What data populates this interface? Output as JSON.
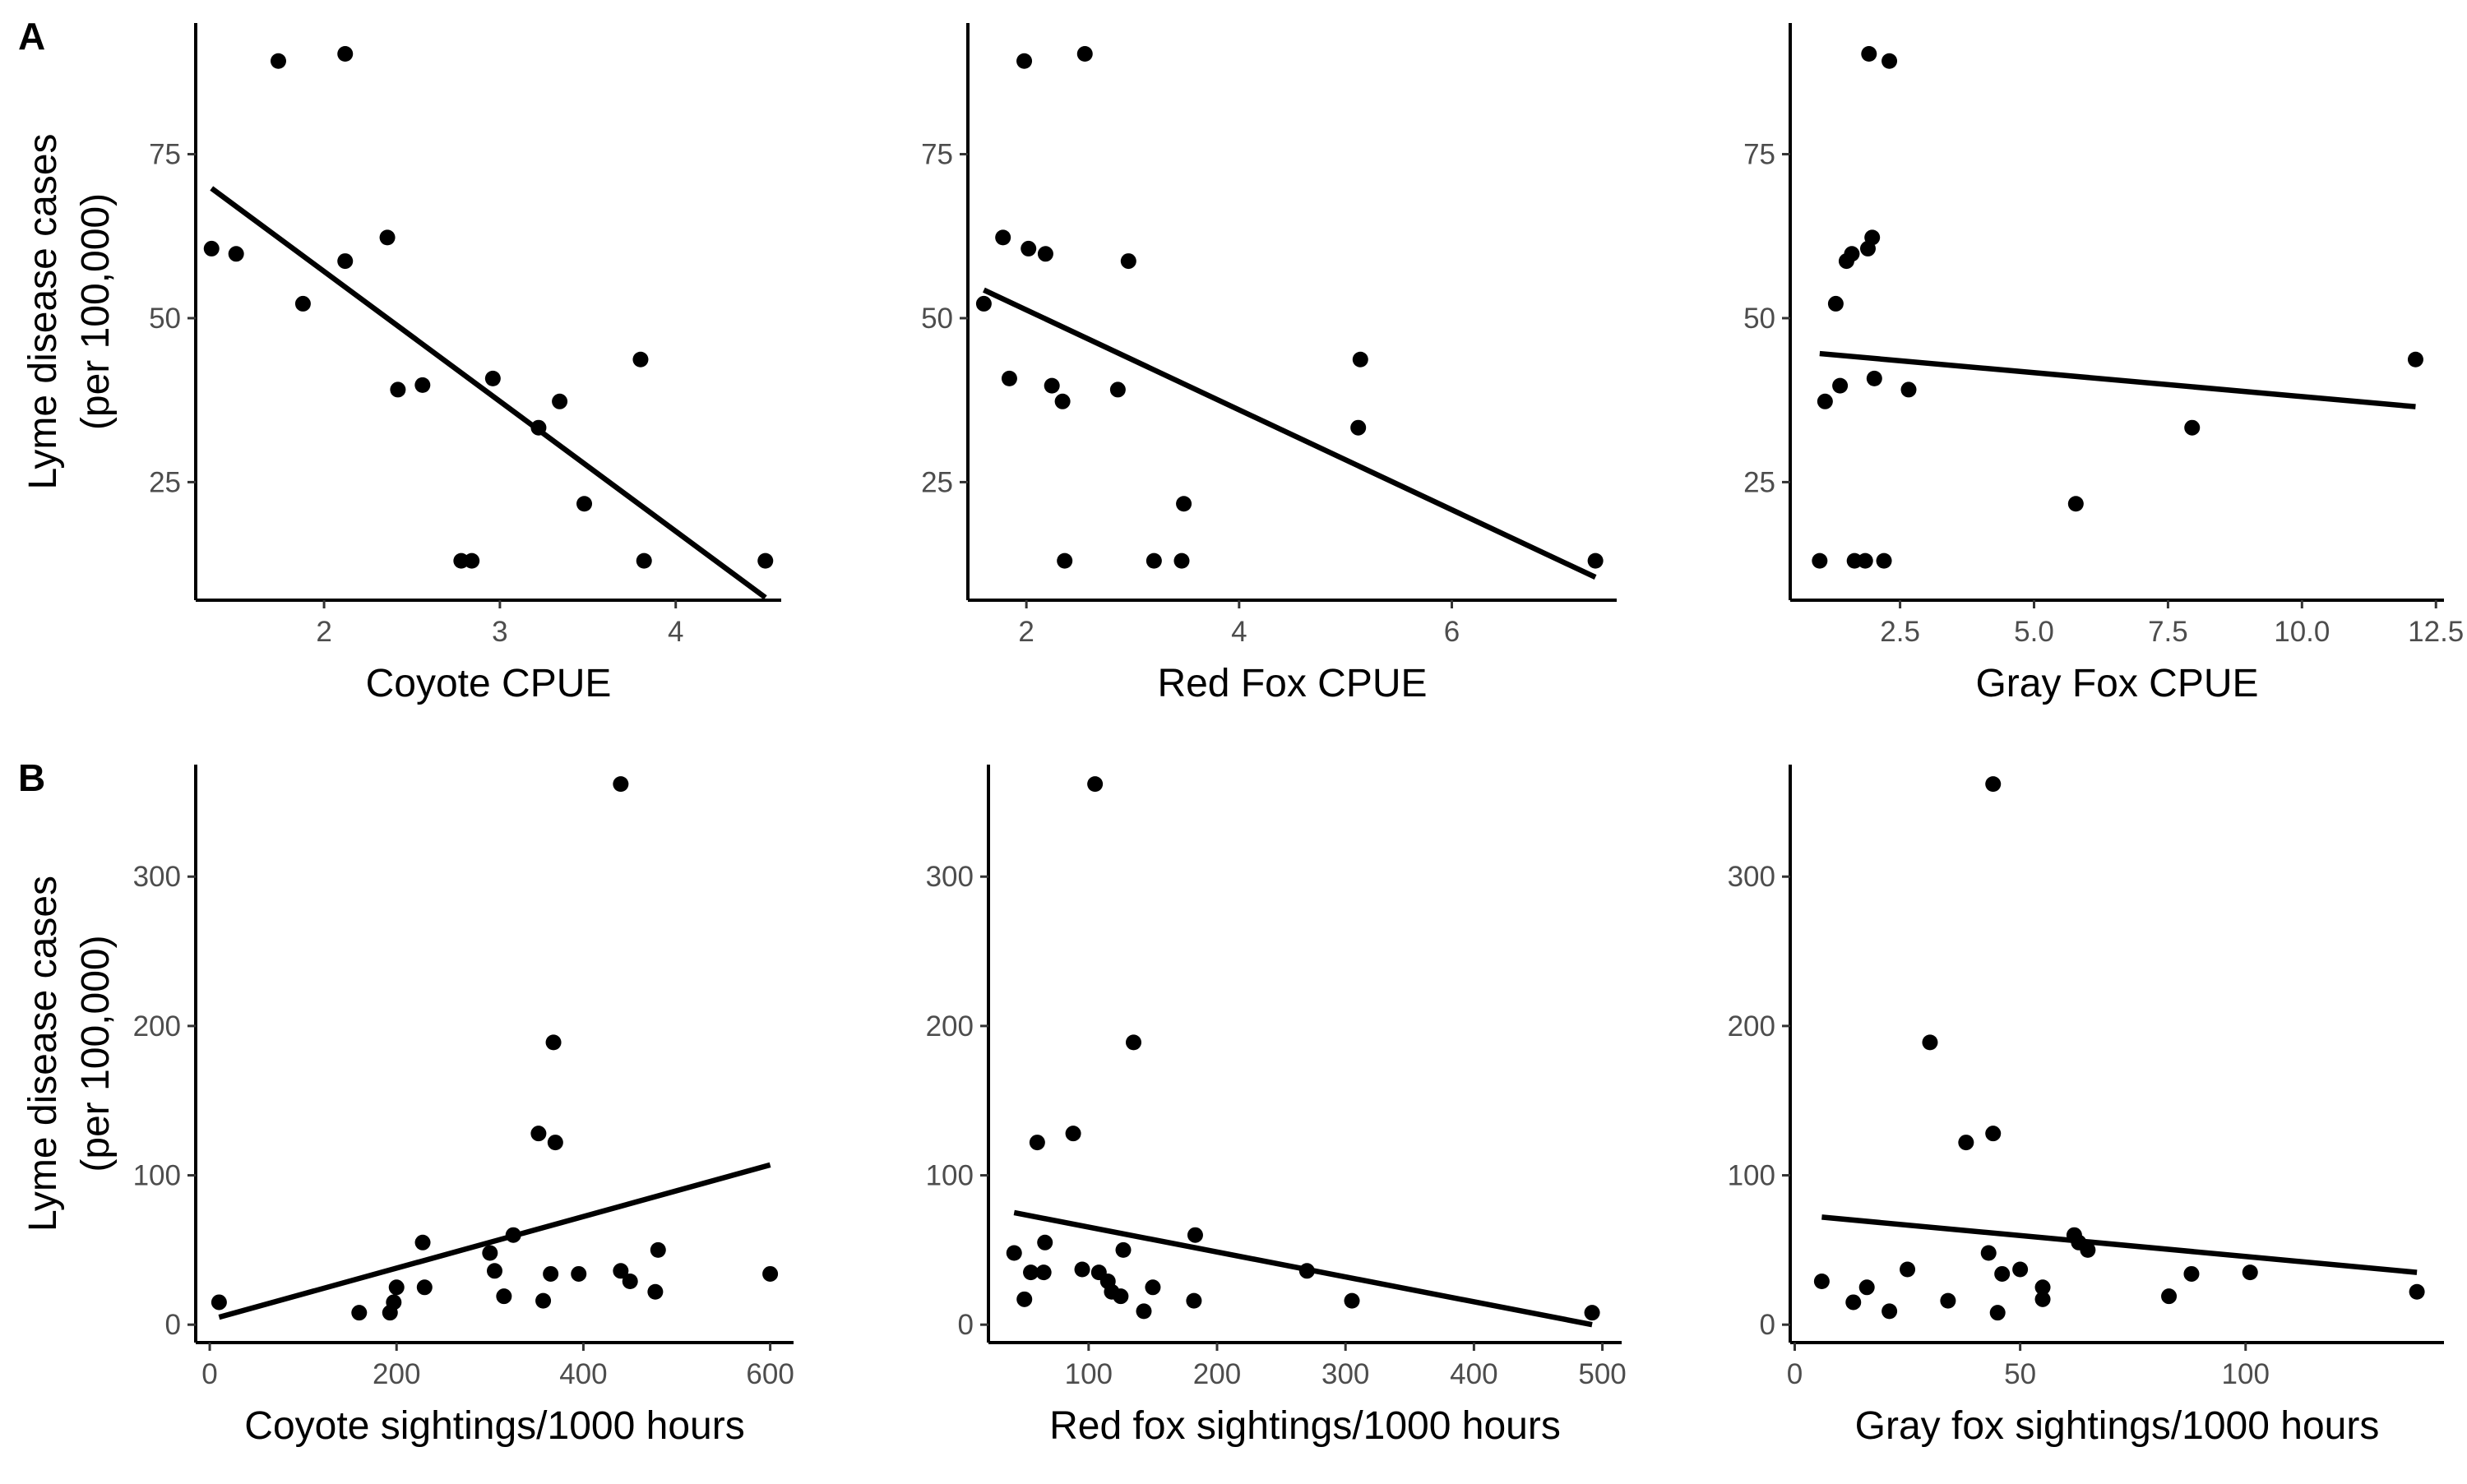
{
  "figure": {
    "row_labels": [
      "A",
      "B"
    ],
    "y_title_lines": [
      "Lyme disease cases",
      "(per 100,000)"
    ]
  },
  "chart_data": [
    {
      "type": "scatter",
      "title": "",
      "panel_label": "A",
      "xlabel": "Coyote CPUE",
      "ylabel": "Lyme disease cases (per 100,000)",
      "xlim": [
        1.27,
        4.6
      ],
      "ylim": [
        7,
        95
      ],
      "xticks": [
        2,
        3,
        4
      ],
      "xtick_labels": [
        "2",
        "3",
        "4"
      ],
      "yticks": [
        25,
        50,
        75
      ],
      "ytick_labels": [
        "25",
        "50",
        "75"
      ],
      "grid": false,
      "points": [
        [
          1.36,
          60.6
        ],
        [
          1.5,
          59.8
        ],
        [
          1.74,
          89.2
        ],
        [
          1.88,
          52.2
        ],
        [
          2.12,
          90.3
        ],
        [
          2.12,
          58.7
        ],
        [
          2.36,
          62.3
        ],
        [
          2.42,
          39.1
        ],
        [
          2.56,
          39.8
        ],
        [
          2.78,
          13
        ],
        [
          2.84,
          13
        ],
        [
          2.96,
          40.8
        ],
        [
          3.22,
          33.3
        ],
        [
          3.34,
          37.3
        ],
        [
          3.48,
          21.7
        ],
        [
          3.8,
          43.7
        ],
        [
          3.82,
          13
        ],
        [
          4.51,
          13
        ]
      ],
      "fit_line": [
        [
          1.36,
          69.8
        ],
        [
          4.51,
          7.4
        ]
      ]
    },
    {
      "type": "scatter",
      "title": "",
      "xlabel": "Red Fox CPUE",
      "ylabel": "",
      "xlim": [
        1.45,
        7.55
      ],
      "ylim": [
        7,
        95
      ],
      "xticks": [
        2,
        4,
        6
      ],
      "xtick_labels": [
        "2",
        "4",
        "6"
      ],
      "yticks": [
        25,
        50,
        75
      ],
      "ytick_labels": [
        "25",
        "50",
        "75"
      ],
      "grid": false,
      "points": [
        [
          1.6,
          52.2
        ],
        [
          1.78,
          62.3
        ],
        [
          1.84,
          40.8
        ],
        [
          1.98,
          89.2
        ],
        [
          2.02,
          60.6
        ],
        [
          2.18,
          59.8
        ],
        [
          2.24,
          39.7
        ],
        [
          2.34,
          37.3
        ],
        [
          2.36,
          13
        ],
        [
          2.55,
          90.3
        ],
        [
          2.86,
          39.1
        ],
        [
          2.96,
          58.7
        ],
        [
          3.2,
          13
        ],
        [
          3.46,
          13
        ],
        [
          3.48,
          21.7
        ],
        [
          5.12,
          33.3
        ],
        [
          5.14,
          43.7
        ],
        [
          7.35,
          13
        ]
      ],
      "fit_line": [
        [
          1.6,
          54.3
        ],
        [
          7.35,
          10.5
        ]
      ]
    },
    {
      "type": "scatter",
      "title": "",
      "xlabel": "Gray Fox CPUE",
      "ylabel": "",
      "xlim": [
        0.45,
        12.65
      ],
      "ylim": [
        7,
        95
      ],
      "xticks": [
        2.5,
        5,
        7.5,
        10,
        12.5
      ],
      "xtick_labels": [
        "2.5",
        "5.0",
        "7.5",
        "10.0",
        "12.5"
      ],
      "yticks": [
        25,
        50,
        75
      ],
      "ytick_labels": [
        "25",
        "50",
        "75"
      ],
      "grid": false,
      "points": [
        [
          1.0,
          13
        ],
        [
          1.1,
          37.3
        ],
        [
          1.3,
          52.2
        ],
        [
          1.38,
          39.7
        ],
        [
          1.5,
          58.7
        ],
        [
          1.6,
          59.8
        ],
        [
          1.65,
          13
        ],
        [
          1.85,
          13
        ],
        [
          1.9,
          60.6
        ],
        [
          1.92,
          90.3
        ],
        [
          1.98,
          62.3
        ],
        [
          2.02,
          40.8
        ],
        [
          2.2,
          13
        ],
        [
          2.3,
          89.2
        ],
        [
          2.66,
          39.1
        ],
        [
          5.78,
          21.7
        ],
        [
          7.95,
          33.3
        ],
        [
          12.12,
          43.7
        ]
      ],
      "fit_line": [
        [
          1.0,
          44.6
        ],
        [
          12.12,
          36.5
        ]
      ]
    },
    {
      "type": "scatter",
      "title": "",
      "panel_label": "B",
      "xlabel": "Coyote sightings/1000 hours",
      "ylabel": "Lyme disease cases (per 100,000)",
      "xlim": [
        -15,
        625
      ],
      "ylim": [
        -12,
        375
      ],
      "xticks": [
        0,
        200,
        400,
        600
      ],
      "xtick_labels": [
        "0",
        "200",
        "400",
        "600"
      ],
      "yticks": [
        0,
        100,
        200,
        300
      ],
      "ytick_labels": [
        "0",
        "100",
        "200",
        "300"
      ],
      "grid": false,
      "points": [
        [
          10,
          15
        ],
        [
          160,
          8
        ],
        [
          193,
          8
        ],
        [
          197,
          15
        ],
        [
          200,
          25
        ],
        [
          228,
          55
        ],
        [
          230,
          25
        ],
        [
          300,
          48
        ],
        [
          305,
          36
        ],
        [
          315,
          19
        ],
        [
          325,
          60
        ],
        [
          352,
          128
        ],
        [
          357,
          16
        ],
        [
          365,
          34
        ],
        [
          368,
          189
        ],
        [
          370,
          122
        ],
        [
          395,
          34
        ],
        [
          440,
          362
        ],
        [
          440,
          36
        ],
        [
          450,
          29
        ],
        [
          477,
          22
        ],
        [
          480,
          50
        ],
        [
          600,
          34
        ]
      ],
      "fit_line": [
        [
          10,
          5
        ],
        [
          600,
          107
        ]
      ]
    },
    {
      "type": "scatter",
      "title": "",
      "xlabel": "Red fox sightings/1000 hours",
      "ylabel": "",
      "xlim": [
        22,
        515
      ],
      "ylim": [
        -12,
        375
      ],
      "xticks": [
        100,
        200,
        300,
        400,
        500
      ],
      "xtick_labels": [
        "100",
        "200",
        "300",
        "400",
        "500"
      ],
      "yticks": [
        0,
        100,
        200,
        300
      ],
      "ytick_labels": [
        "0",
        "100",
        "200",
        "300"
      ],
      "grid": false,
      "points": [
        [
          42,
          48
        ],
        [
          50,
          17
        ],
        [
          55,
          35
        ],
        [
          60,
          122
        ],
        [
          65,
          35
        ],
        [
          66,
          55
        ],
        [
          88,
          128
        ],
        [
          95,
          37
        ],
        [
          105,
          362
        ],
        [
          108,
          35
        ],
        [
          115,
          29
        ],
        [
          118,
          22
        ],
        [
          125,
          19
        ],
        [
          127,
          50
        ],
        [
          135,
          189
        ],
        [
          143,
          9
        ],
        [
          150,
          25
        ],
        [
          182,
          16
        ],
        [
          183,
          60
        ],
        [
          270,
          36
        ],
        [
          305,
          16
        ],
        [
          492,
          8
        ]
      ],
      "fit_line": [
        [
          42,
          75
        ],
        [
          492,
          0
        ]
      ]
    },
    {
      "type": "scatter",
      "title": "",
      "xlabel": "Gray fox sightings/1000 hours",
      "ylabel": "",
      "xlim": [
        -1,
        144
      ],
      "ylim": [
        -12,
        375
      ],
      "xticks": [
        0,
        50,
        100
      ],
      "xtick_labels": [
        "0",
        "50",
        "100"
      ],
      "yticks": [
        0,
        100,
        200,
        300
      ],
      "ytick_labels": [
        "0",
        "100",
        "200",
        "300"
      ],
      "grid": false,
      "points": [
        [
          6,
          29
        ],
        [
          13,
          15
        ],
        [
          16,
          25
        ],
        [
          21,
          9
        ],
        [
          25,
          37
        ],
        [
          30,
          189
        ],
        [
          34,
          16
        ],
        [
          38,
          122
        ],
        [
          43,
          48
        ],
        [
          44,
          362
        ],
        [
          44,
          128
        ],
        [
          45,
          8
        ],
        [
          46,
          34
        ],
        [
          50,
          37
        ],
        [
          55,
          17
        ],
        [
          55,
          25
        ],
        [
          62,
          60
        ],
        [
          63,
          55
        ],
        [
          65,
          50
        ],
        [
          83,
          19
        ],
        [
          88,
          34
        ],
        [
          101,
          35
        ],
        [
          138,
          22
        ]
      ],
      "fit_line": [
        [
          6,
          72
        ],
        [
          138,
          35
        ]
      ]
    }
  ]
}
